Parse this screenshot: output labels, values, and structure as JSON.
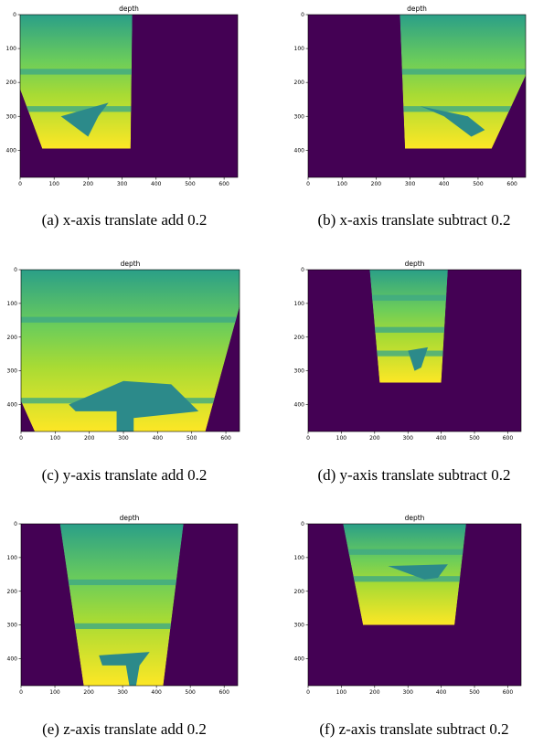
{
  "chart_data": [
    {
      "type": "image",
      "title": "depth",
      "caption": "(a) x-axis translate add 0.2",
      "xlim": [
        0,
        640
      ],
      "ylim": [
        480,
        0
      ],
      "xticks": [
        0,
        100,
        200,
        300,
        400,
        500,
        600
      ],
      "yticks": [
        0,
        100,
        200,
        300,
        400
      ]
    },
    {
      "type": "image",
      "title": "depth",
      "caption": "(b) x-axis translate subtract 0.2",
      "xlim": [
        0,
        640
      ],
      "ylim": [
        480,
        0
      ],
      "xticks": [
        0,
        100,
        200,
        300,
        400,
        500,
        600
      ],
      "yticks": [
        0,
        100,
        200,
        300,
        400
      ]
    },
    {
      "type": "image",
      "title": "depth",
      "caption": "(c) y-axis translate add 0.2",
      "xlim": [
        0,
        640
      ],
      "ylim": [
        480,
        0
      ],
      "xticks": [
        0,
        100,
        200,
        300,
        400,
        500,
        600
      ],
      "yticks": [
        0,
        100,
        200,
        300,
        400
      ]
    },
    {
      "type": "image",
      "title": "depth",
      "caption": "(d) y-axis translate subtract 0.2",
      "xlim": [
        0,
        640
      ],
      "ylim": [
        480,
        0
      ],
      "xticks": [
        0,
        100,
        200,
        300,
        400,
        500,
        600
      ],
      "yticks": [
        0,
        100,
        200,
        300,
        400
      ]
    },
    {
      "type": "image",
      "title": "depth",
      "caption": "(e) z-axis translate add 0.2",
      "xlim": [
        0,
        640
      ],
      "ylim": [
        480,
        0
      ],
      "xticks": [
        0,
        100,
        200,
        300,
        400,
        500,
        600
      ],
      "yticks": [
        0,
        100,
        200,
        300,
        400
      ]
    },
    {
      "type": "image",
      "title": "depth",
      "caption": "(f) z-axis translate subtract 0.2",
      "xlim": [
        0,
        640
      ],
      "ylim": [
        480,
        0
      ],
      "xticks": [
        0,
        100,
        200,
        300,
        400,
        500,
        600
      ],
      "yticks": [
        0,
        100,
        200,
        300,
        400
      ]
    }
  ]
}
